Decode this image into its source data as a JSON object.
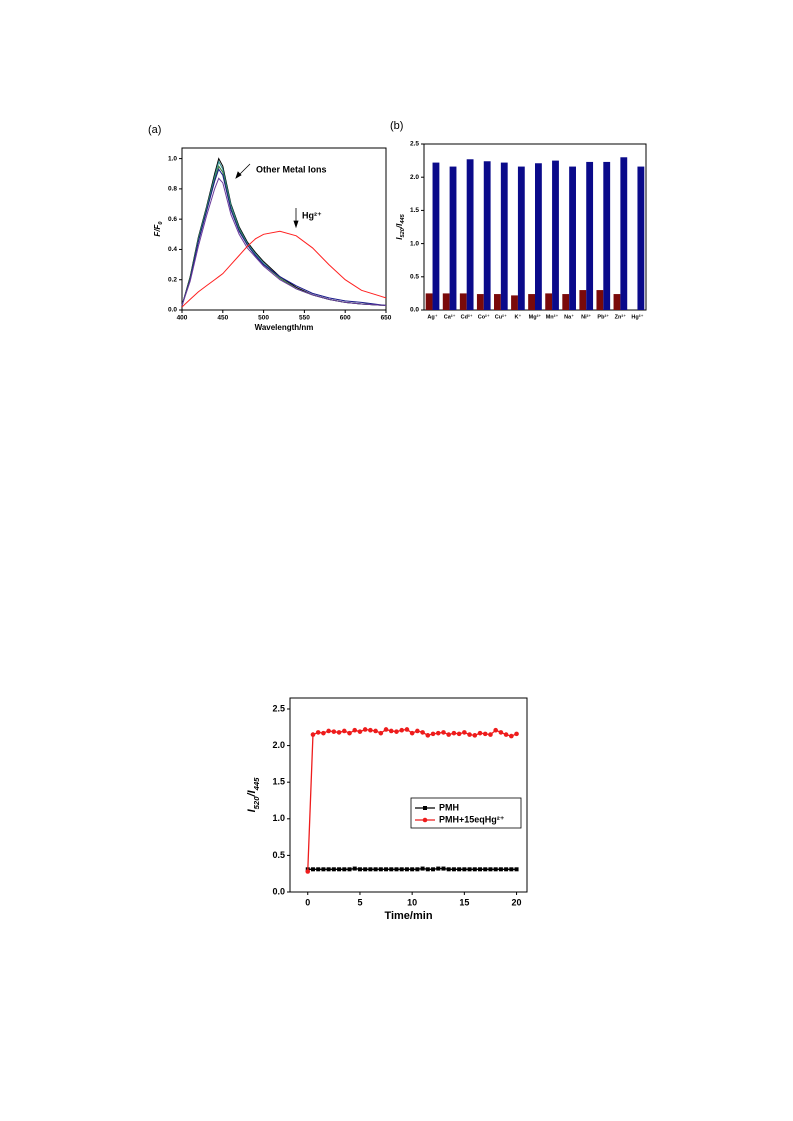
{
  "chart_data": [
    {
      "type": "line",
      "label": "(a)",
      "xlabel": "Wavelength/nm",
      "ylabel": [
        "F/F",
        "0"
      ],
      "annotations": [
        "Other Metal Ions",
        "Hg²⁺"
      ],
      "x": [
        400,
        410,
        420,
        430,
        440,
        445,
        450,
        460,
        470,
        480,
        490,
        500,
        520,
        540,
        560,
        580,
        600,
        620,
        650
      ],
      "series": [
        {
          "color": "#000000",
          "values": [
            0.03,
            0.22,
            0.48,
            0.68,
            0.9,
            1.0,
            0.95,
            0.7,
            0.55,
            0.45,
            0.38,
            0.32,
            0.22,
            0.15,
            0.1,
            0.07,
            0.05,
            0.04,
            0.03
          ]
        },
        {
          "color": "#2a8a8a",
          "values": [
            0.03,
            0.21,
            0.47,
            0.67,
            0.88,
            0.98,
            0.93,
            0.69,
            0.54,
            0.44,
            0.37,
            0.31,
            0.21,
            0.14,
            0.1,
            0.07,
            0.05,
            0.04,
            0.03
          ]
        },
        {
          "color": "#3a7a3a",
          "values": [
            0.03,
            0.21,
            0.46,
            0.66,
            0.86,
            0.95,
            0.91,
            0.67,
            0.53,
            0.43,
            0.36,
            0.3,
            0.21,
            0.14,
            0.1,
            0.07,
            0.05,
            0.04,
            0.03
          ]
        },
        {
          "color": "#1a1a8a",
          "values": [
            0.03,
            0.2,
            0.45,
            0.65,
            0.85,
            0.93,
            0.89,
            0.66,
            0.52,
            0.43,
            0.36,
            0.3,
            0.22,
            0.16,
            0.11,
            0.08,
            0.06,
            0.05,
            0.03
          ]
        },
        {
          "color": "#6a3a9a",
          "values": [
            0.03,
            0.19,
            0.42,
            0.62,
            0.8,
            0.87,
            0.84,
            0.63,
            0.5,
            0.41,
            0.35,
            0.29,
            0.2,
            0.14,
            0.1,
            0.07,
            0.05,
            0.04,
            0.03
          ]
        },
        {
          "color": "#ff2020",
          "values": [
            0.02,
            0.07,
            0.12,
            0.16,
            0.2,
            0.22,
            0.24,
            0.3,
            0.36,
            0.42,
            0.47,
            0.5,
            0.52,
            0.49,
            0.41,
            0.3,
            0.2,
            0.13,
            0.08
          ]
        }
      ],
      "xlim": [
        400,
        650
      ],
      "xticks": [
        400,
        450,
        500,
        550,
        600,
        650
      ],
      "ylim": [
        0,
        1.07
      ],
      "yticks": [
        {
          "value": 0,
          "label": "0.0"
        },
        0.2,
        0.4,
        0.6,
        0.8,
        {
          "value": 1,
          "label": "1.0"
        }
      ]
    },
    {
      "type": "bar",
      "label": "(b)",
      "ylabel": [
        "I",
        "520",
        "/I",
        "445"
      ],
      "categories": [
        "Ag⁺",
        "Ca²⁺",
        "Cd²⁺",
        "Co²⁺",
        "Cu²⁺",
        "K⁺",
        "Mg²⁺",
        "Mn²⁺",
        "Na⁺",
        "Ni²⁺",
        "Pb²⁺",
        "Zn²⁺",
        "Hg²⁺"
      ],
      "series": [
        {
          "color": "#7a0a0a",
          "values": [
            0.25,
            0.25,
            0.25,
            0.24,
            0.24,
            0.22,
            0.24,
            0.25,
            0.24,
            0.3,
            0.3,
            0.24,
            null
          ]
        },
        {
          "color": "#0a0a8a",
          "values": [
            2.22,
            2.16,
            2.27,
            2.24,
            2.22,
            2.16,
            2.21,
            2.25,
            2.16,
            2.23,
            2.23,
            2.3,
            2.16
          ]
        }
      ],
      "ylim": [
        0,
        2.5
      ],
      "yticks": [
        {
          "value": 0,
          "label": "0.0"
        },
        0.5,
        {
          "value": 1,
          "label": "1.0"
        },
        1.5,
        {
          "value": 2,
          "label": "2.0"
        },
        2.5
      ]
    },
    {
      "type": "line",
      "xlabel": "Time/min",
      "ylabel": [
        "I",
        "520",
        "/I",
        "445"
      ],
      "legend": "right",
      "x": [
        0,
        0.5,
        1,
        1.5,
        2,
        2.5,
        3,
        3.5,
        4,
        4.5,
        5,
        5.5,
        6,
        6.5,
        7,
        7.5,
        8,
        8.5,
        9,
        9.5,
        10,
        10.5,
        11,
        11.5,
        12,
        12.5,
        13,
        13.5,
        14,
        14.5,
        15,
        15.5,
        16,
        16.5,
        17,
        17.5,
        18,
        18.5,
        19,
        19.5,
        20
      ],
      "series": [
        {
          "name": "PMH",
          "color": "#000000",
          "marker": "square",
          "values": [
            0.31,
            0.31,
            0.31,
            0.31,
            0.31,
            0.31,
            0.31,
            0.31,
            0.31,
            0.32,
            0.31,
            0.31,
            0.31,
            0.31,
            0.31,
            0.31,
            0.31,
            0.31,
            0.31,
            0.31,
            0.31,
            0.31,
            0.32,
            0.31,
            0.31,
            0.32,
            0.32,
            0.31,
            0.31,
            0.31,
            0.31,
            0.31,
            0.31,
            0.31,
            0.31,
            0.31,
            0.31,
            0.31,
            0.31,
            0.31,
            0.31
          ]
        },
        {
          "name": "PMH+15eqHg²⁺",
          "color": "#ee1c1c",
          "marker": "circle",
          "values": [
            0.28,
            2.15,
            2.18,
            2.17,
            2.2,
            2.19,
            2.18,
            2.2,
            2.17,
            2.21,
            2.19,
            2.22,
            2.21,
            2.2,
            2.17,
            2.22,
            2.2,
            2.19,
            2.21,
            2.22,
            2.17,
            2.2,
            2.18,
            2.14,
            2.16,
            2.17,
            2.18,
            2.15,
            2.17,
            2.16,
            2.18,
            2.15,
            2.14,
            2.17,
            2.16,
            2.15,
            2.21,
            2.18,
            2.15,
            2.13,
            2.16
          ]
        }
      ],
      "xlim": [
        -1.7,
        21
      ],
      "xticks": [
        0,
        5,
        10,
        15,
        20
      ],
      "ylim": [
        0,
        2.65
      ],
      "yticks": [
        {
          "value": 0,
          "label": "0.0"
        },
        0.5,
        {
          "value": 1,
          "label": "1.0"
        },
        1.5,
        {
          "value": 2,
          "label": "2.0"
        },
        2.5
      ]
    }
  ]
}
